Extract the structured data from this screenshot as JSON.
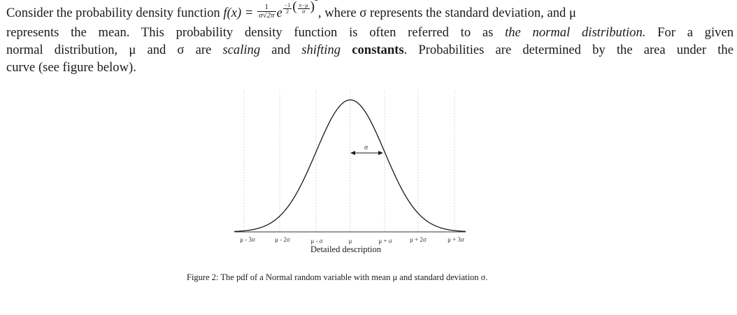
{
  "paragraph": {
    "intro": "Consider the probability density function ",
    "fx": "f(x) =",
    "frac_num": "1",
    "frac_den": "σ√2π",
    "e": "e",
    "exp_frac": "−1",
    "exp_frac_den": "2",
    "exp_inner_num": "x−μ",
    "exp_inner_den": "σ",
    "exp_power": "2",
    "after_formula": ", where σ represents the standard deviation, and μ",
    "line2_a": "represents the mean. This probability density function is often referred to as ",
    "line2_italic": "the normal distribution.",
    "line2_b": " For a given",
    "line3_a": "normal distribution, μ and σ are ",
    "line3_italic1": "scaling",
    "line3_b": " and ",
    "line3_italic2": "shifting",
    "line3_c": " ",
    "line3_bold": "constants",
    "line3_d": ". Probabilities are determined by the area under the",
    "line4": "curve (see figure below)."
  },
  "figure": {
    "sigma_label": "σ",
    "ticks": [
      "μ - 3σ",
      "μ - 2σ",
      "μ - σ",
      "μ",
      "μ + σ",
      "μ + 2σ",
      "μ + 3σ"
    ],
    "description_link": "Detailed description",
    "caption": "Figure 2: The pdf of a Normal random variable with mean μ and standard deviation σ."
  }
}
